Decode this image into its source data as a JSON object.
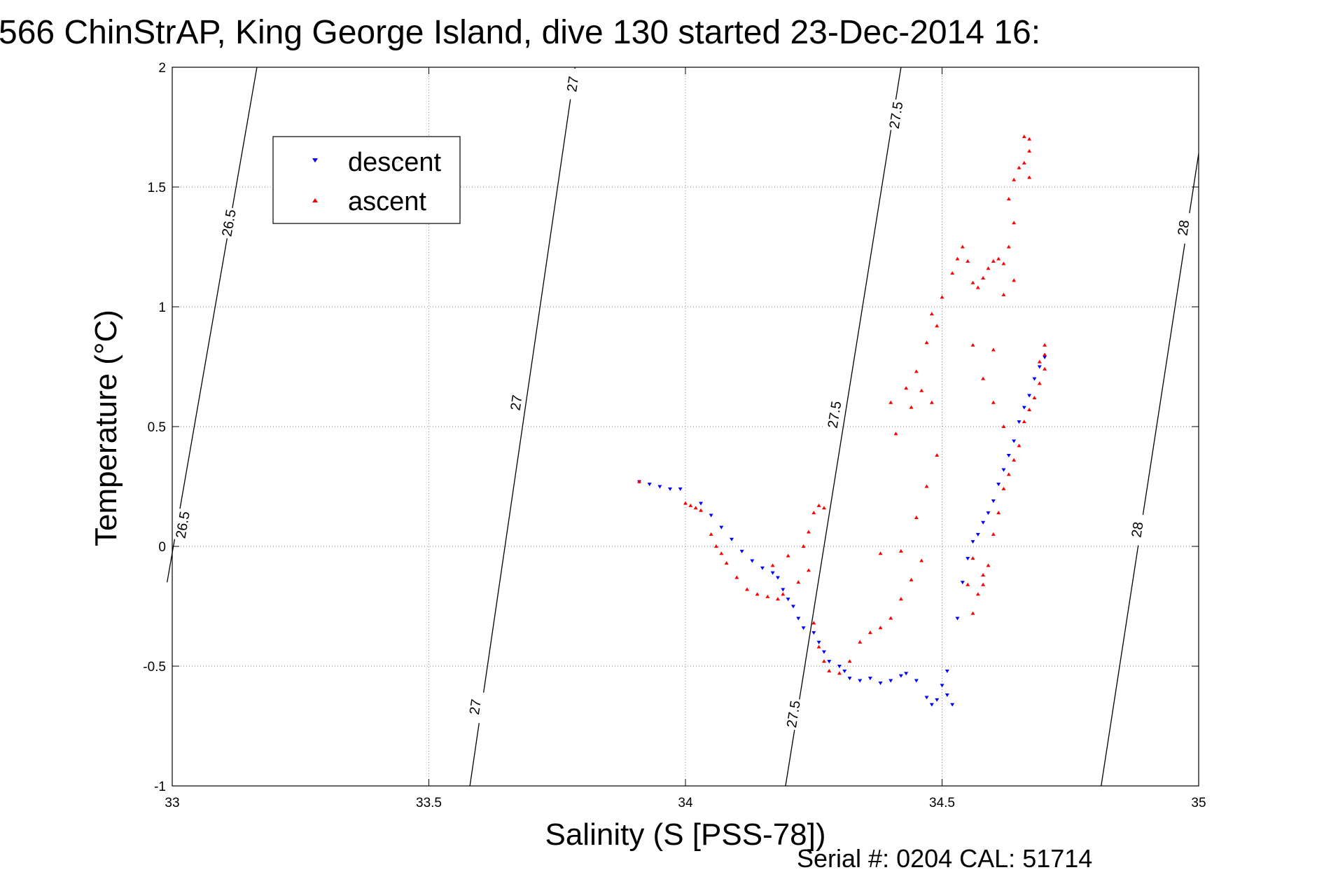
{
  "chart_data": {
    "type": "scatter",
    "title": "566 ChinStrAP, King George Island, dive 130 started 23-Dec-2014 16:",
    "xlabel": "Salinity (S [PSS-78])",
    "ylabel": "Temperature (°C)",
    "xlim": [
      33,
      35
    ],
    "ylim": [
      -1,
      2
    ],
    "x_ticks": [
      33,
      33.5,
      34,
      34.5,
      35
    ],
    "x_tick_labels": [
      "33",
      "33.5",
      "34",
      "34.5",
      "35"
    ],
    "y_ticks": [
      -1,
      -0.5,
      0,
      0.5,
      1,
      1.5,
      2
    ],
    "y_tick_labels": [
      "-1",
      "-0.5",
      "0",
      "0.5",
      "1",
      "1.5",
      "2"
    ],
    "grid": true,
    "legend_position": "top-left",
    "series": [
      {
        "name": "descent",
        "color": "#0000ff",
        "marker": "triangle-down",
        "points": [
          [
            33.91,
            0.27
          ],
          [
            33.93,
            0.26
          ],
          [
            33.95,
            0.25
          ],
          [
            33.97,
            0.24
          ],
          [
            33.99,
            0.24
          ],
          [
            34.03,
            0.18
          ],
          [
            34.05,
            0.13
          ],
          [
            34.07,
            0.08
          ],
          [
            34.09,
            0.03
          ],
          [
            34.11,
            -0.02
          ],
          [
            34.13,
            -0.06
          ],
          [
            34.15,
            -0.09
          ],
          [
            34.17,
            -0.11
          ],
          [
            34.18,
            -0.13
          ],
          [
            34.19,
            -0.18
          ],
          [
            34.2,
            -0.22
          ],
          [
            34.21,
            -0.25
          ],
          [
            34.22,
            -0.3
          ],
          [
            34.23,
            -0.34
          ],
          [
            34.25,
            -0.36
          ],
          [
            34.26,
            -0.4
          ],
          [
            34.27,
            -0.44
          ],
          [
            34.28,
            -0.48
          ],
          [
            34.3,
            -0.5
          ],
          [
            34.31,
            -0.52
          ],
          [
            34.32,
            -0.55
          ],
          [
            34.34,
            -0.56
          ],
          [
            34.36,
            -0.55
          ],
          [
            34.38,
            -0.57
          ],
          [
            34.4,
            -0.56
          ],
          [
            34.42,
            -0.54
          ],
          [
            34.43,
            -0.53
          ],
          [
            34.45,
            -0.56
          ],
          [
            34.47,
            -0.63
          ],
          [
            34.48,
            -0.66
          ],
          [
            34.49,
            -0.64
          ],
          [
            34.5,
            -0.58
          ],
          [
            34.51,
            -0.52
          ],
          [
            34.51,
            -0.62
          ],
          [
            34.52,
            -0.66
          ],
          [
            34.53,
            -0.3
          ],
          [
            34.54,
            -0.15
          ],
          [
            34.55,
            -0.05
          ],
          [
            34.56,
            0.02
          ],
          [
            34.57,
            0.05
          ],
          [
            34.58,
            0.1
          ],
          [
            34.59,
            0.14
          ],
          [
            34.6,
            0.19
          ],
          [
            34.61,
            0.26
          ],
          [
            34.62,
            0.32
          ],
          [
            34.63,
            0.38
          ],
          [
            34.64,
            0.44
          ],
          [
            34.65,
            0.52
          ],
          [
            34.66,
            0.58
          ],
          [
            34.67,
            0.63
          ],
          [
            34.68,
            0.7
          ],
          [
            34.69,
            0.75
          ],
          [
            34.7,
            0.79
          ]
        ]
      },
      {
        "name": "ascent",
        "color": "#ff0000",
        "marker": "triangle-up",
        "points": [
          [
            33.91,
            0.27
          ],
          [
            34.0,
            0.18
          ],
          [
            34.01,
            0.17
          ],
          [
            34.02,
            0.16
          ],
          [
            34.03,
            0.15
          ],
          [
            34.05,
            0.05
          ],
          [
            34.06,
            0.0
          ],
          [
            34.07,
            -0.03
          ],
          [
            34.08,
            -0.07
          ],
          [
            34.1,
            -0.13
          ],
          [
            34.12,
            -0.18
          ],
          [
            34.14,
            -0.2
          ],
          [
            34.16,
            -0.21
          ],
          [
            34.18,
            -0.22
          ],
          [
            34.19,
            -0.2
          ],
          [
            34.17,
            -0.08
          ],
          [
            34.2,
            -0.04
          ],
          [
            34.22,
            -0.15
          ],
          [
            34.23,
            0.0
          ],
          [
            34.24,
            0.06
          ],
          [
            34.25,
            0.14
          ],
          [
            34.26,
            0.17
          ],
          [
            34.27,
            0.16
          ],
          [
            34.24,
            -0.1
          ],
          [
            34.25,
            -0.32
          ],
          [
            34.26,
            -0.42
          ],
          [
            34.27,
            -0.48
          ],
          [
            34.28,
            -0.52
          ],
          [
            34.3,
            -0.53
          ],
          [
            34.32,
            -0.48
          ],
          [
            34.34,
            -0.4
          ],
          [
            34.36,
            -0.36
          ],
          [
            34.38,
            -0.34
          ],
          [
            34.4,
            -0.3
          ],
          [
            34.42,
            -0.22
          ],
          [
            34.44,
            -0.14
          ],
          [
            34.46,
            -0.06
          ],
          [
            34.38,
            -0.03
          ],
          [
            34.42,
            -0.02
          ],
          [
            34.45,
            0.12
          ],
          [
            34.47,
            0.25
          ],
          [
            34.49,
            0.38
          ],
          [
            34.48,
            0.6
          ],
          [
            34.46,
            0.65
          ],
          [
            34.44,
            0.58
          ],
          [
            34.41,
            0.47
          ],
          [
            34.4,
            0.6
          ],
          [
            34.43,
            0.66
          ],
          [
            34.45,
            0.73
          ],
          [
            34.47,
            0.85
          ],
          [
            34.49,
            0.92
          ],
          [
            34.48,
            0.97
          ],
          [
            34.5,
            1.04
          ],
          [
            34.52,
            1.14
          ],
          [
            34.53,
            1.2
          ],
          [
            34.54,
            1.25
          ],
          [
            34.55,
            1.19
          ],
          [
            34.56,
            1.1
          ],
          [
            34.57,
            1.08
          ],
          [
            34.58,
            1.12
          ],
          [
            34.59,
            1.16
          ],
          [
            34.6,
            1.19
          ],
          [
            34.61,
            1.2
          ],
          [
            34.62,
            1.18
          ],
          [
            34.63,
            1.25
          ],
          [
            34.64,
            1.35
          ],
          [
            34.62,
            1.05
          ],
          [
            34.64,
            1.11
          ],
          [
            34.6,
            0.82
          ],
          [
            34.56,
            0.84
          ],
          [
            34.58,
            0.7
          ],
          [
            34.6,
            0.6
          ],
          [
            34.62,
            0.5
          ],
          [
            34.63,
            1.45
          ],
          [
            34.64,
            1.53
          ],
          [
            34.65,
            1.58
          ],
          [
            34.66,
            1.6
          ],
          [
            34.67,
            1.65
          ],
          [
            34.67,
            1.7
          ],
          [
            34.66,
            1.71
          ],
          [
            34.67,
            1.54
          ],
          [
            34.56,
            -0.05
          ],
          [
            34.55,
            -0.16
          ],
          [
            34.56,
            -0.28
          ],
          [
            34.57,
            -0.2
          ],
          [
            34.58,
            -0.12
          ],
          [
            34.59,
            -0.08
          ],
          [
            34.58,
            -0.16
          ],
          [
            34.6,
            0.05
          ],
          [
            34.61,
            0.14
          ],
          [
            34.62,
            0.24
          ],
          [
            34.63,
            0.3
          ],
          [
            34.64,
            0.36
          ],
          [
            34.65,
            0.42
          ],
          [
            34.66,
            0.52
          ],
          [
            34.67,
            0.57
          ],
          [
            34.68,
            0.62
          ],
          [
            34.69,
            0.68
          ],
          [
            34.7,
            0.74
          ],
          [
            34.7,
            0.8
          ],
          [
            34.7,
            0.84
          ],
          [
            34.69,
            0.77
          ]
        ]
      }
    ],
    "contours": [
      {
        "value": "26.5",
        "from": [
          32.99,
          -0.15
        ],
        "to": [
          33.165,
          2.0
        ],
        "labels": [
          {
            "text": "26.5",
            "at": [
              33.11,
              1.35
            ]
          },
          {
            "text": "26.5",
            "at": [
              33.02,
              0.09
            ]
          }
        ]
      },
      {
        "value": "27",
        "from": [
          33.58,
          -1.0
        ],
        "to": [
          33.785,
          2.0
        ],
        "labels": [
          {
            "text": "27",
            "at": [
              33.78,
              1.93
            ]
          },
          {
            "text": "27",
            "at": [
              33.67,
              0.6
            ]
          },
          {
            "text": "27",
            "at": [
              33.59,
              -0.67
            ]
          }
        ]
      },
      {
        "value": "27.5",
        "from": [
          34.195,
          -1.0
        ],
        "to": [
          34.42,
          2.0
        ],
        "labels": [
          {
            "text": "27.5",
            "at": [
              34.41,
              1.8
            ]
          },
          {
            "text": "27.5",
            "at": [
              34.29,
              0.55
            ]
          },
          {
            "text": "27.5",
            "at": [
              34.21,
              -0.7
            ]
          }
        ]
      },
      {
        "value": "28",
        "from": [
          34.81,
          -1.0
        ],
        "to": [
          35.0,
          1.64
        ],
        "labels": [
          {
            "text": "28",
            "at": [
              34.97,
              1.33
            ]
          },
          {
            "text": "28",
            "at": [
              34.88,
              0.07
            ]
          }
        ]
      }
    ]
  },
  "legend": {
    "descent_label": "descent",
    "ascent_label": "ascent"
  },
  "footer": {
    "serial_text": "Serial #: 0204  CAL: 51714"
  }
}
